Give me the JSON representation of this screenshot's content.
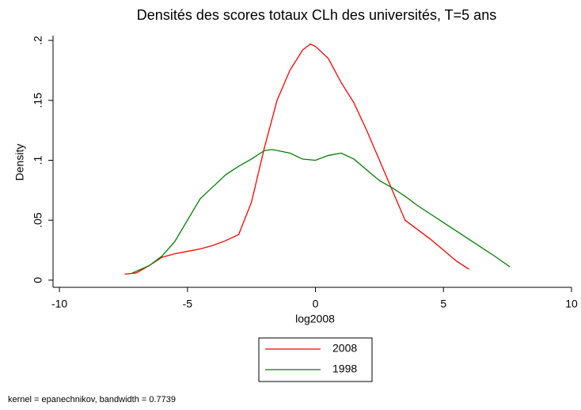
{
  "chart_data": {
    "type": "line",
    "title": "Densités des scores totaux CLh des universités, T=5 ans",
    "xlabel": "log2008",
    "ylabel": "Density",
    "note": "kernel = epanechnikov, bandwidth = 0.7739",
    "xlim": [
      -10.25,
      10
    ],
    "xticks": [
      -10,
      -5,
      0,
      5,
      10
    ],
    "ylim": [
      -0.006,
      0.204
    ],
    "yticks": [
      0,
      {
        "value": 0.05,
        "label": ".05"
      },
      {
        "value": 0.1,
        "label": ".1"
      },
      {
        "value": 0.15,
        "label": ".15"
      },
      {
        "value": 0.2,
        "label": ".2"
      }
    ],
    "series": [
      {
        "name": "2008",
        "color": "#ff0000",
        "x": [
          -7.45,
          -7.0,
          -6.5,
          -6,
          -5.5,
          -5,
          -4.5,
          -4,
          -3.5,
          -3,
          -2.5,
          -2,
          -1.5,
          -1,
          -0.5,
          -0.2,
          0,
          0.5,
          1,
          1.5,
          2,
          2.5,
          3,
          3.5,
          4,
          4.5,
          5,
          5.5,
          6
        ],
        "values": [
          0.005,
          0.006,
          0.012,
          0.019,
          0.022,
          0.024,
          0.026,
          0.029,
          0.033,
          0.038,
          0.065,
          0.11,
          0.15,
          0.175,
          0.192,
          0.197,
          0.195,
          0.185,
          0.165,
          0.148,
          0.125,
          0.1,
          0.075,
          0.05,
          0.042,
          0.034,
          0.025,
          0.016,
          0.009
        ]
      },
      {
        "name": "1998",
        "color": "#008000",
        "x": [
          -7.15,
          -6.5,
          -6,
          -5.5,
          -5,
          -4.5,
          -4,
          -3.5,
          -3,
          -2.5,
          -2,
          -1.7,
          -1,
          -0.5,
          0,
          0.5,
          1,
          1.5,
          2,
          2.5,
          3,
          3.5,
          4,
          4.5,
          5,
          5.5,
          6,
          6.5,
          7,
          7.6
        ],
        "values": [
          0.006,
          0.012,
          0.02,
          0.032,
          0.05,
          0.068,
          0.078,
          0.088,
          0.095,
          0.101,
          0.108,
          0.109,
          0.106,
          0.101,
          0.1,
          0.104,
          0.106,
          0.101,
          0.092,
          0.083,
          0.077,
          0.07,
          0.062,
          0.055,
          0.048,
          0.041,
          0.034,
          0.027,
          0.02,
          0.011
        ]
      }
    ]
  }
}
